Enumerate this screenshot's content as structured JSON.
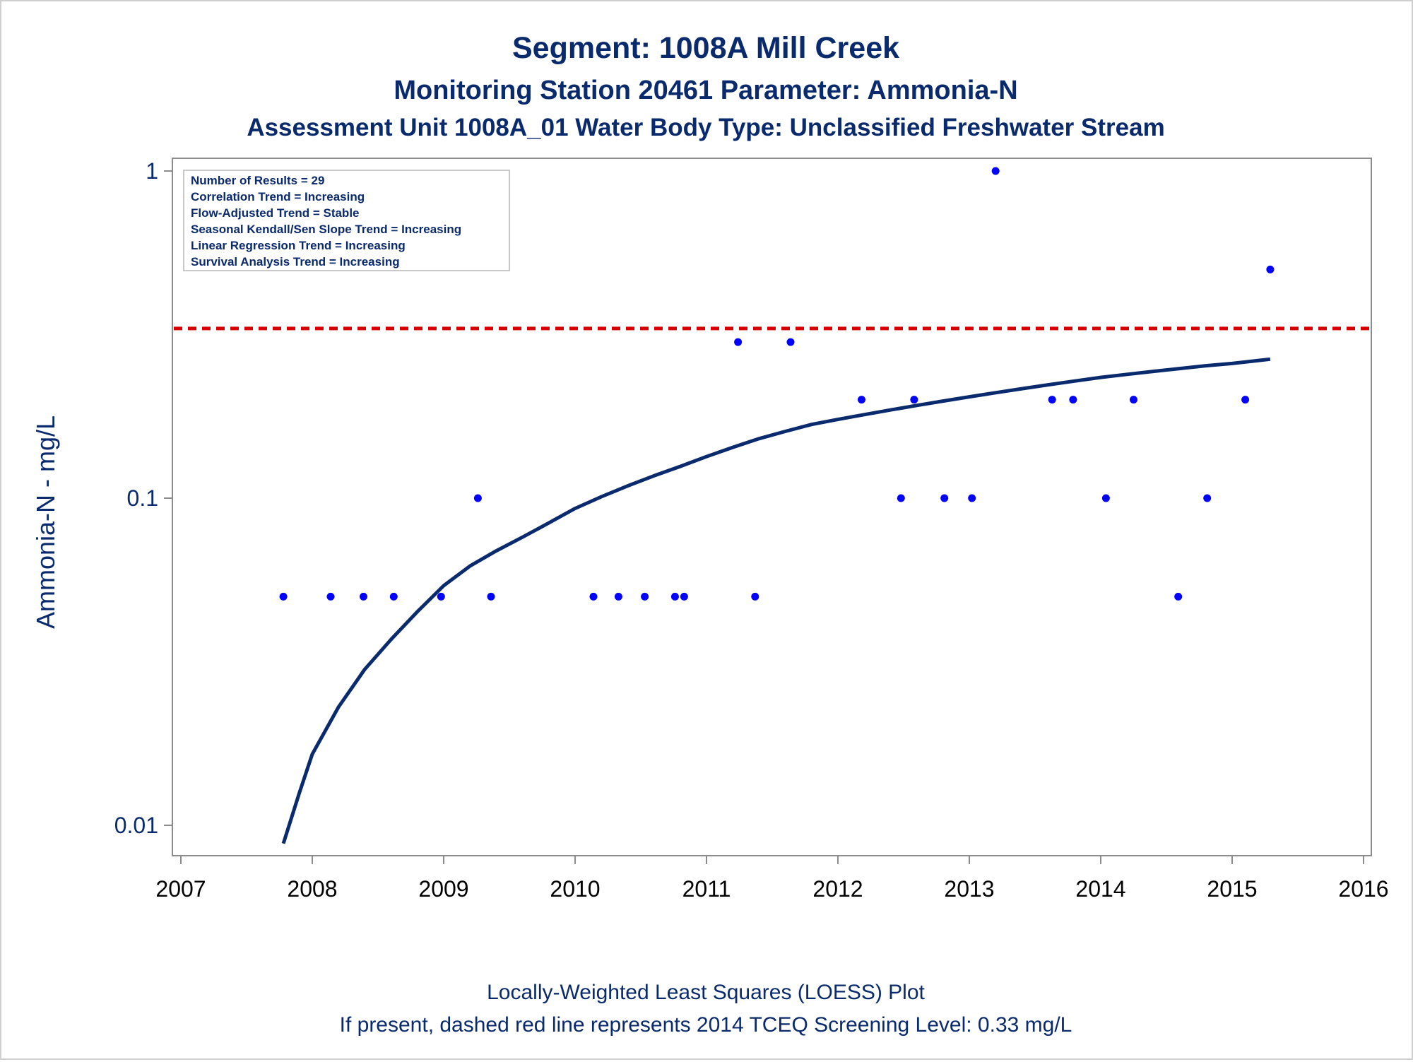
{
  "titles": {
    "line1": "Segment: 1008A  Mill Creek",
    "line2": "Monitoring Station 20461 Parameter: Ammonia-N",
    "line3": "Assessment Unit 1008A_01   Water Body Type: Unclassified Freshwater Stream"
  },
  "stats_box": [
    "Number of Results = 29",
    "Correlation Trend = Increasing",
    "Flow-Adjusted Trend = Stable",
    "Seasonal Kendall/Sen Slope Trend = Increasing",
    "Linear Regression Trend = Increasing",
    "Survival Analysis Trend = Increasing"
  ],
  "footnotes": {
    "line1": "Locally-Weighted Least Squares (LOESS) Plot",
    "line2": "If present, dashed red line represents 2014 TCEQ Screening Level: 0.33 mg/L"
  },
  "colors": {
    "points": "#0000ff",
    "loess": "#0a2a6e",
    "screening_line": "#d40000",
    "text": "#0a2a6e",
    "axis": "#8c8c8c"
  },
  "chart_data": {
    "type": "scatter",
    "ylabel": "Ammonia-N - mg/L",
    "xlabel": "",
    "y_scale": "log",
    "xlim": [
      2007,
      2016
    ],
    "ylim": [
      0.0085,
      1
    ],
    "x_ticks": [
      2007,
      2008,
      2009,
      2010,
      2011,
      2012,
      2013,
      2014,
      2015,
      2016
    ],
    "y_ticks": [
      {
        "value": 0.01,
        "label": "0.01"
      },
      {
        "value": 0.1,
        "label": "0.1"
      },
      {
        "value": 1,
        "label": "1"
      }
    ],
    "screening_level": 0.33,
    "series": [
      {
        "kind": "points",
        "x": [
          2007.78,
          2008.14,
          2008.39,
          2008.62,
          2008.98,
          2009.26,
          2009.36,
          2010.14,
          2010.33,
          2010.53,
          2010.76,
          2010.83,
          2011.24,
          2011.37,
          2011.64,
          2012.18,
          2012.48,
          2012.58,
          2012.81,
          2013.02,
          2013.2,
          2013.63,
          2013.79,
          2014.04,
          2014.25,
          2014.59,
          2014.81,
          2015.1,
          2015.29
        ],
        "y": [
          0.05,
          0.05,
          0.05,
          0.05,
          0.05,
          0.1,
          0.05,
          0.05,
          0.05,
          0.05,
          0.05,
          0.05,
          0.3,
          0.05,
          0.3,
          0.2,
          0.1,
          0.2,
          0.1,
          0.1,
          1.0,
          0.2,
          0.2,
          0.1,
          0.2,
          0.05,
          0.1,
          0.2,
          0.5
        ]
      },
      {
        "kind": "loess",
        "x": [
          2007.78,
          2007.9,
          2008.0,
          2008.2,
          2008.4,
          2008.6,
          2008.8,
          2009.0,
          2009.2,
          2009.4,
          2009.6,
          2009.8,
          2010.0,
          2010.2,
          2010.4,
          2010.6,
          2010.8,
          2011.0,
          2011.2,
          2011.4,
          2011.6,
          2011.8,
          2012.0,
          2012.2,
          2012.4,
          2012.6,
          2012.8,
          2013.0,
          2013.2,
          2013.4,
          2013.6,
          2013.8,
          2014.0,
          2014.2,
          2014.4,
          2014.6,
          2014.8,
          2015.0,
          2015.29
        ],
        "y": [
          0.0088,
          0.0125,
          0.0165,
          0.023,
          0.03,
          0.037,
          0.045,
          0.054,
          0.062,
          0.069,
          0.076,
          0.084,
          0.093,
          0.101,
          0.109,
          0.117,
          0.125,
          0.134,
          0.143,
          0.152,
          0.16,
          0.168,
          0.174,
          0.18,
          0.186,
          0.192,
          0.198,
          0.204,
          0.21,
          0.216,
          0.222,
          0.228,
          0.234,
          0.239,
          0.244,
          0.249,
          0.254,
          0.258,
          0.266
        ]
      }
    ]
  }
}
